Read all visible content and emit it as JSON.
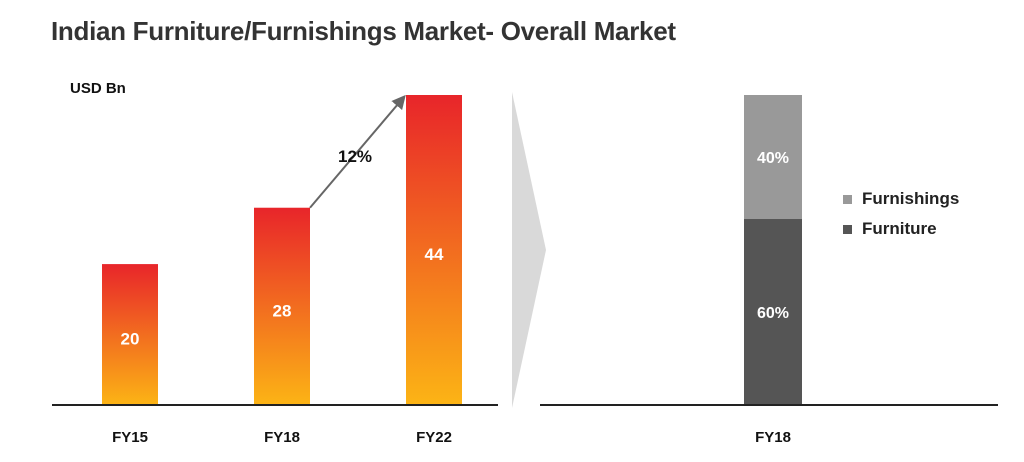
{
  "title": "Indian Furniture/Furnishings Market- Overall Market",
  "unit_label": "USD Bn",
  "chart_data": [
    {
      "type": "bar",
      "title": "",
      "xlabel": "",
      "ylabel": "USD Bn",
      "categories": [
        "FY15",
        "FY18",
        "FY22"
      ],
      "values": [
        20,
        28,
        44
      ],
      "value_labels": [
        "20",
        "28",
        "44"
      ],
      "ylim": [
        0,
        44
      ],
      "annotation": {
        "text": "12%",
        "from": "FY18",
        "to": "FY22"
      },
      "colors": {
        "bar_top": "#e8252a",
        "bar_bottom": "#fcb415",
        "axis": "#222222"
      }
    },
    {
      "type": "bar",
      "stacked": true,
      "title": "",
      "categories": [
        "FY18"
      ],
      "series": [
        {
          "name": "Furniture",
          "values": [
            60
          ],
          "label": "60%",
          "color": "#555555"
        },
        {
          "name": "Furnishings",
          "values": [
            40
          ],
          "label": "40%",
          "color": "#999999"
        }
      ],
      "ylim": [
        0,
        100
      ],
      "legend_position": "right"
    }
  ],
  "legend": [
    {
      "label": "Furnishings",
      "color": "#999999"
    },
    {
      "label": "Furniture",
      "color": "#555555"
    }
  ]
}
